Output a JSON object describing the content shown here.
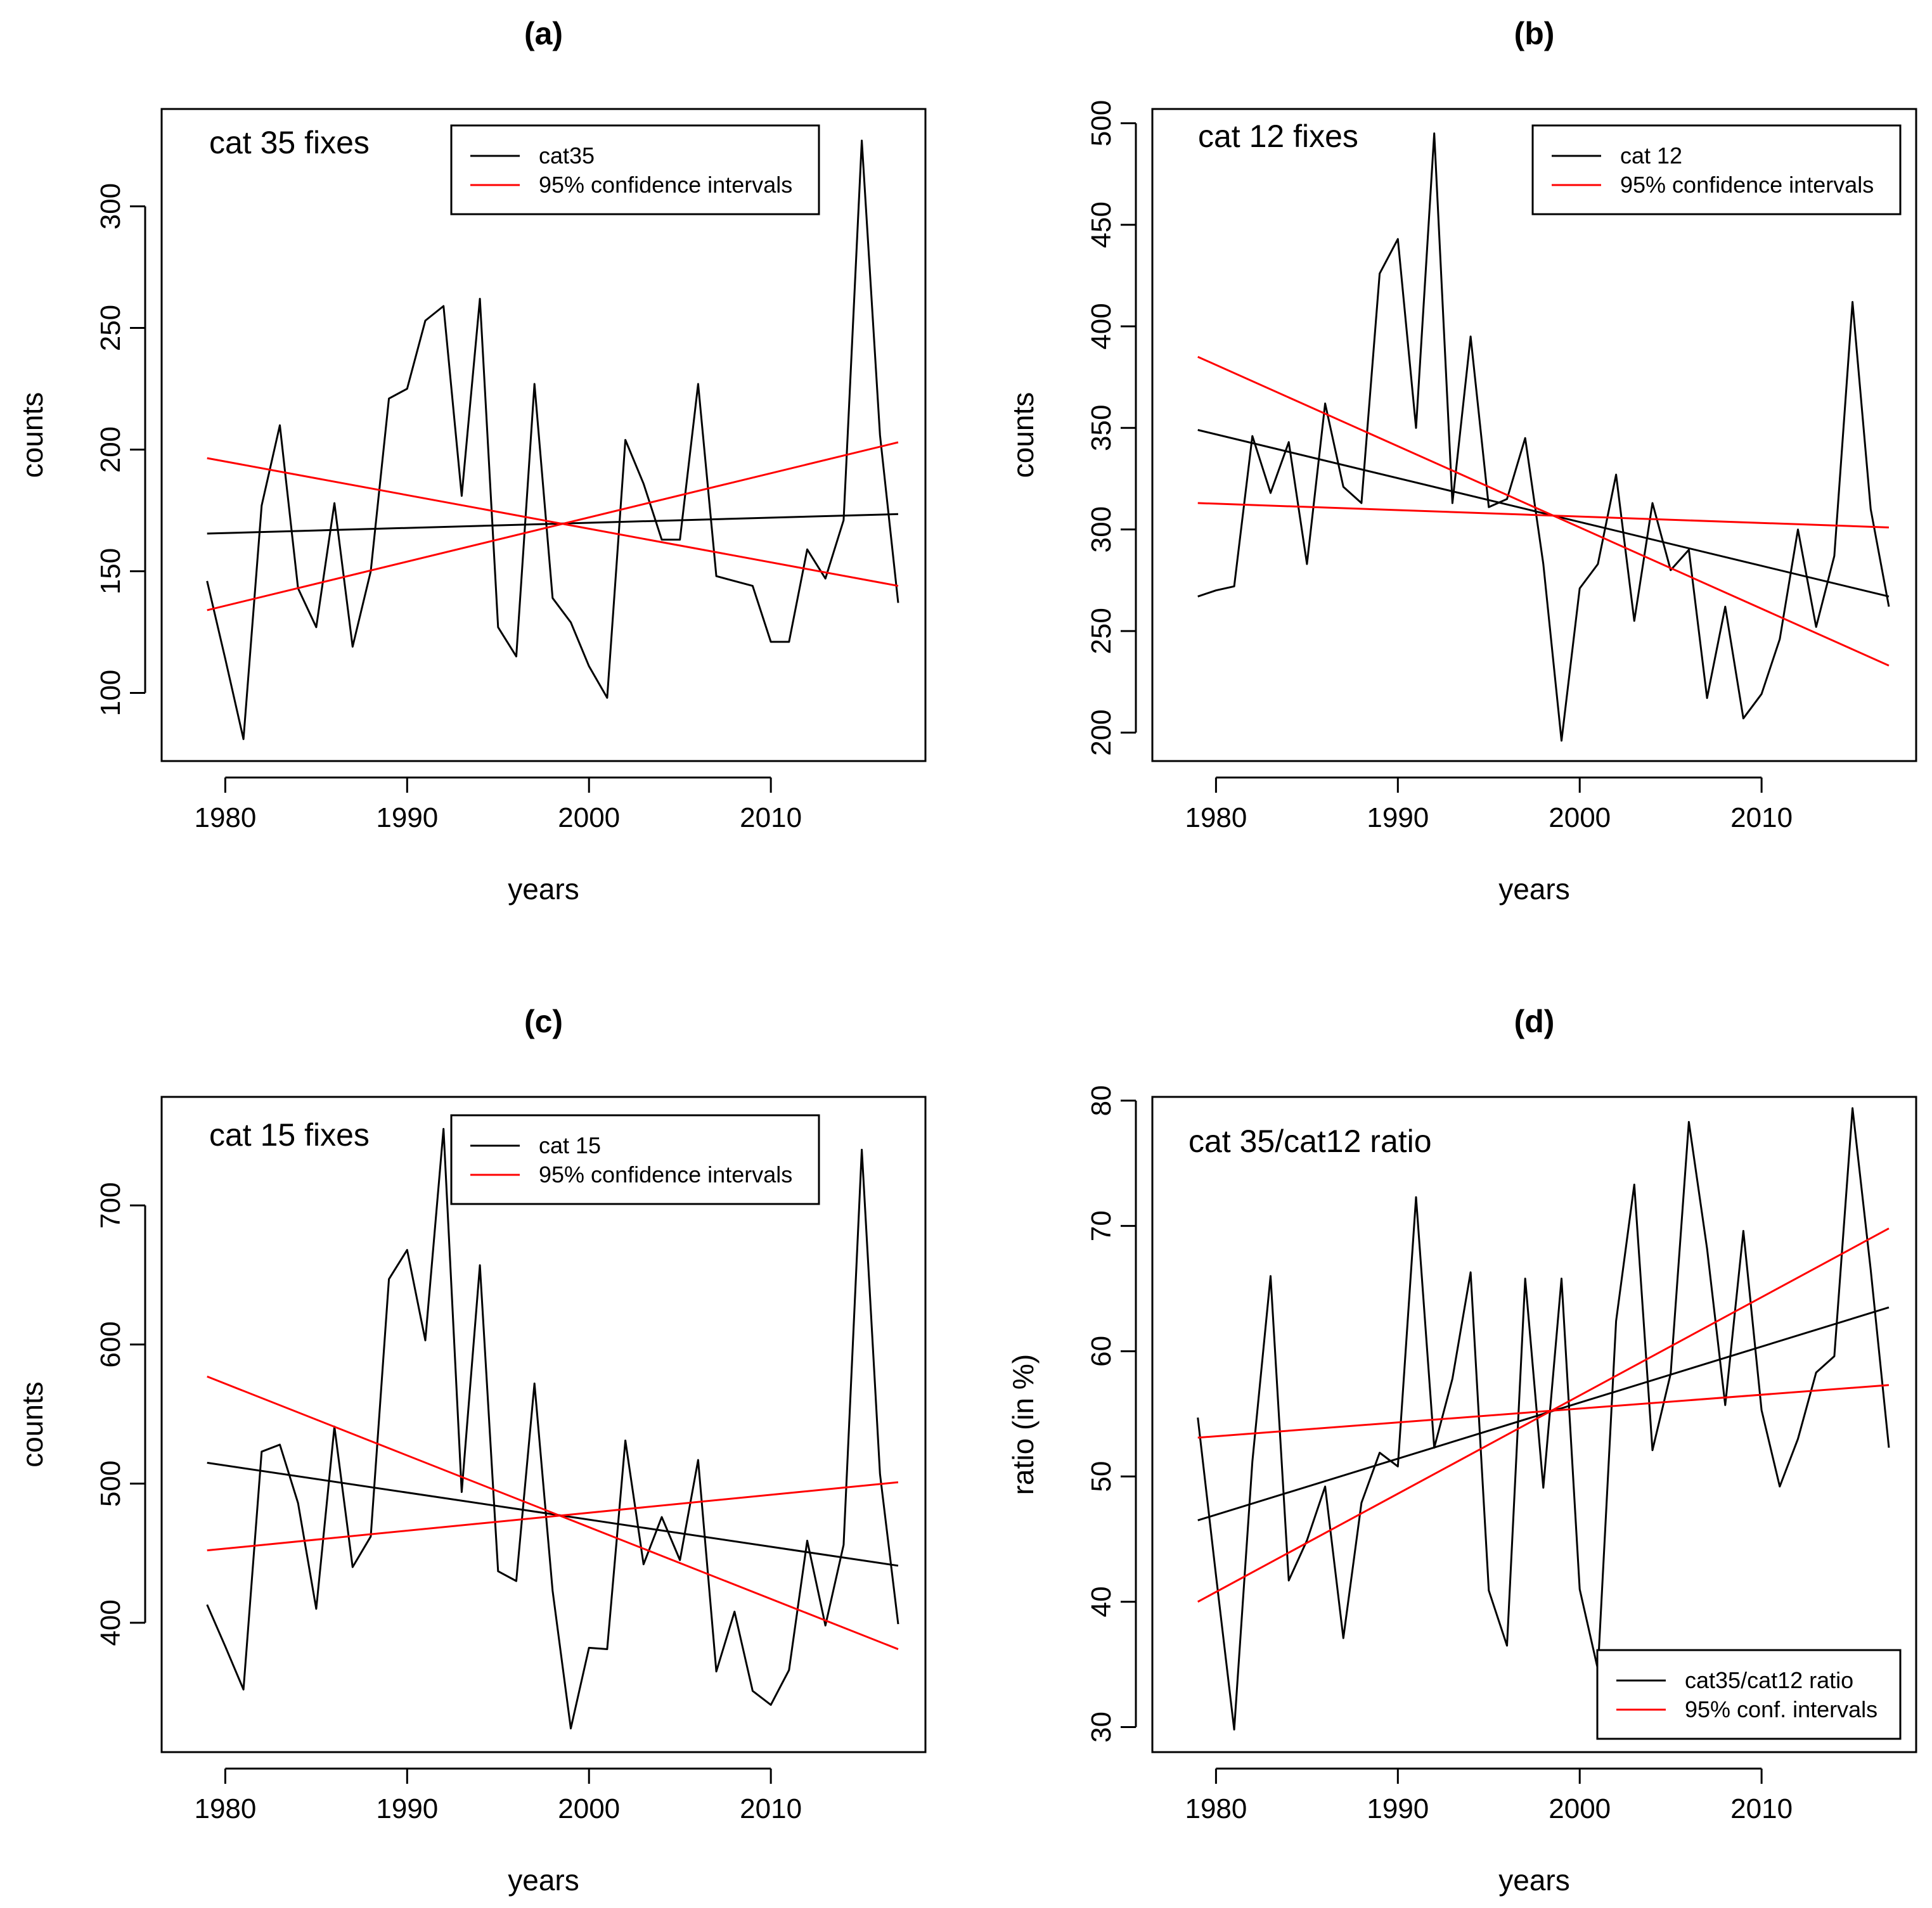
{
  "chart_data": [
    {
      "id": "a",
      "type": "line",
      "title": "(a)",
      "inset_label": "cat 35 fixes",
      "xlabel": "years",
      "ylabel": "counts",
      "xlim": [
        1976.5,
        2018.5
      ],
      "ylim": [
        72,
        340
      ],
      "xticks": [
        1980,
        1990,
        2000,
        2010
      ],
      "yticks": [
        100,
        150,
        200,
        250,
        300
      ],
      "legend_position": "top-right",
      "legend": [
        "cat35",
        "95% confidence intervals"
      ],
      "x": [
        1979,
        1980,
        1981,
        1982,
        1983,
        1984,
        1985,
        1986,
        1987,
        1988,
        1989,
        1990,
        1991,
        1992,
        1993,
        1994,
        1995,
        1996,
        1997,
        1998,
        1999,
        2000,
        2001,
        2002,
        2003,
        2004,
        2005,
        2006,
        2007,
        2008,
        2009,
        2010,
        2011,
        2012,
        2013,
        2014,
        2015,
        2016,
        2017
      ],
      "series": [
        {
          "name": "cat35",
          "color": "#000000",
          "values": [
            146,
            114,
            81,
            177,
            210,
            143,
            127,
            178,
            119,
            150,
            221,
            225,
            253,
            259,
            181,
            262,
            127,
            115,
            227,
            139,
            129,
            111,
            98,
            204,
            186,
            163,
            163,
            227,
            148,
            146,
            144,
            121,
            121,
            159,
            147,
            171,
            327,
            206,
            137
          ]
        }
      ],
      "trend_lines": [
        {
          "name": "trend",
          "color": "#000000",
          "x": [
            1979,
            2017
          ],
          "y": [
            165.5,
            173.5
          ]
        },
        {
          "name": "95% CI lower",
          "color": "#ff0000",
          "x": [
            1979,
            2017
          ],
          "y": [
            134,
            203
          ]
        },
        {
          "name": "95% CI upper",
          "color": "#ff0000",
          "x": [
            1979,
            2017
          ],
          "y": [
            196.5,
            144
          ]
        }
      ]
    },
    {
      "id": "b",
      "type": "line",
      "title": "(b)",
      "inset_label": "cat 12 fixes",
      "xlabel": "years",
      "ylabel": "counts",
      "xlim": [
        1976.5,
        2018.5
      ],
      "ylim": [
        186,
        507
      ],
      "xticks": [
        1980,
        1990,
        2000,
        2010
      ],
      "yticks": [
        200,
        250,
        300,
        350,
        400,
        450,
        500
      ],
      "legend_position": "top-right",
      "legend": [
        "cat 12",
        "95% confidence intervals"
      ],
      "x": [
        1979,
        1980,
        1981,
        1982,
        1983,
        1984,
        1985,
        1986,
        1987,
        1988,
        1989,
        1990,
        1991,
        1992,
        1993,
        1994,
        1995,
        1996,
        1997,
        1998,
        1999,
        2000,
        2001,
        2002,
        2003,
        2004,
        2005,
        2006,
        2007,
        2008,
        2009,
        2010,
        2011,
        2012,
        2013,
        2014,
        2015,
        2016,
        2017
      ],
      "series": [
        {
          "name": "cat 12",
          "color": "#000000",
          "values": [
            267,
            270,
            272,
            346,
            318,
            343,
            283,
            362,
            321,
            313,
            426,
            443,
            350,
            495,
            313,
            395,
            311,
            315,
            345,
            283,
            196,
            271,
            283,
            327,
            255,
            313,
            280,
            290,
            217,
            262,
            207,
            219,
            246,
            300,
            252,
            287,
            412,
            310,
            262
          ]
        }
      ],
      "trend_lines": [
        {
          "name": "trend",
          "color": "#000000",
          "x": [
            1979,
            2017
          ],
          "y": [
            349,
            267
          ]
        },
        {
          "name": "95% CI upper",
          "color": "#ff0000",
          "x": [
            1979,
            2017
          ],
          "y": [
            385,
            233
          ]
        },
        {
          "name": "95% CI lower",
          "color": "#ff0000",
          "x": [
            1979,
            2017
          ],
          "y": [
            313,
            301
          ]
        }
      ]
    },
    {
      "id": "c",
      "type": "line",
      "title": "(c)",
      "inset_label": "cat 15 fixes",
      "xlabel": "years",
      "ylabel": "counts",
      "xlim": [
        1976.5,
        2018.5
      ],
      "ylim": [
        307,
        778
      ],
      "xticks": [
        1980,
        1990,
        2000,
        2010
      ],
      "yticks": [
        400,
        500,
        600,
        700
      ],
      "legend_position": "top-right",
      "legend": [
        "cat 15",
        "95% confidence intervals"
      ],
      "x": [
        1979,
        1980,
        1981,
        1982,
        1983,
        1984,
        1985,
        1986,
        1987,
        1988,
        1989,
        1990,
        1991,
        1992,
        1993,
        1994,
        1995,
        1996,
        1997,
        1998,
        1999,
        2000,
        2001,
        2002,
        2003,
        2004,
        2005,
        2006,
        2007,
        2008,
        2009,
        2010,
        2011,
        2012,
        2013,
        2014,
        2015,
        2016,
        2017
      ],
      "series": [
        {
          "name": "cat 15",
          "color": "#000000",
          "values": [
            413,
            383,
            352,
            523,
            528,
            486,
            410,
            541,
            440,
            462,
            647,
            668,
            603,
            755,
            494,
            657,
            437,
            430,
            572,
            423,
            324,
            382,
            381,
            531,
            442,
            476,
            445,
            517,
            365,
            408,
            351,
            341,
            366,
            459,
            398,
            456,
            740,
            507,
            399
          ]
        }
      ],
      "trend_lines": [
        {
          "name": "trend",
          "color": "#000000",
          "x": [
            1979,
            2017
          ],
          "y": [
            515,
            441
          ]
        },
        {
          "name": "95% CI upper",
          "color": "#ff0000",
          "x": [
            1979,
            2017
          ],
          "y": [
            577,
            381
          ]
        },
        {
          "name": "95% CI lower",
          "color": "#ff0000",
          "x": [
            1979,
            2017
          ],
          "y": [
            452,
            501
          ]
        }
      ]
    },
    {
      "id": "d",
      "type": "line",
      "title": "(d)",
      "inset_label": "cat 35/cat12 ratio",
      "xlabel": "years",
      "ylabel": "ratio (in %)",
      "xlim": [
        1976.5,
        2018.5
      ],
      "ylim": [
        28,
        80.3
      ],
      "xticks": [
        1980,
        1990,
        2000,
        2010
      ],
      "yticks": [
        30,
        40,
        50,
        60,
        70,
        80
      ],
      "legend_position": "bottom-right",
      "legend": [
        "cat35/cat12 ratio",
        "95% conf. intervals"
      ],
      "x": [
        1979,
        1980,
        1981,
        1982,
        1983,
        1984,
        1985,
        1986,
        1987,
        1988,
        1989,
        1990,
        1991,
        1992,
        1993,
        1994,
        1995,
        1996,
        1997,
        1998,
        1999,
        2000,
        2001,
        2002,
        2003,
        2004,
        2005,
        2006,
        2007,
        2008,
        2009,
        2010,
        2011,
        2012,
        2013,
        2014,
        2015,
        2016,
        2017
      ],
      "series": [
        {
          "name": "cat35/cat12 ratio",
          "color": "#000000",
          "values": [
            54.7,
            42.1,
            29.8,
            51.2,
            66.0,
            41.7,
            44.9,
            49.2,
            37.1,
            47.9,
            51.9,
            50.8,
            72.3,
            52.3,
            57.8,
            66.3,
            40.9,
            36.5,
            65.8,
            49.1,
            65.8,
            41.0,
            34.6,
            62.4,
            73.3,
            52.1,
            58.2,
            78.3,
            68.2,
            55.7,
            69.6,
            55.3,
            49.2,
            53.0,
            58.3,
            59.6,
            79.4,
            66.5,
            52.3
          ]
        }
      ],
      "trend_lines": [
        {
          "name": "trend",
          "color": "#000000",
          "x": [
            1979,
            2017
          ],
          "y": [
            46.5,
            63.5
          ]
        },
        {
          "name": "95% CI upper",
          "color": "#ff0000",
          "x": [
            1979,
            2017
          ],
          "y": [
            40,
            69.8
          ]
        },
        {
          "name": "95% CI lower",
          "color": "#ff0000",
          "x": [
            1979,
            2017
          ],
          "y": [
            53.1,
            57.3
          ]
        }
      ]
    }
  ]
}
